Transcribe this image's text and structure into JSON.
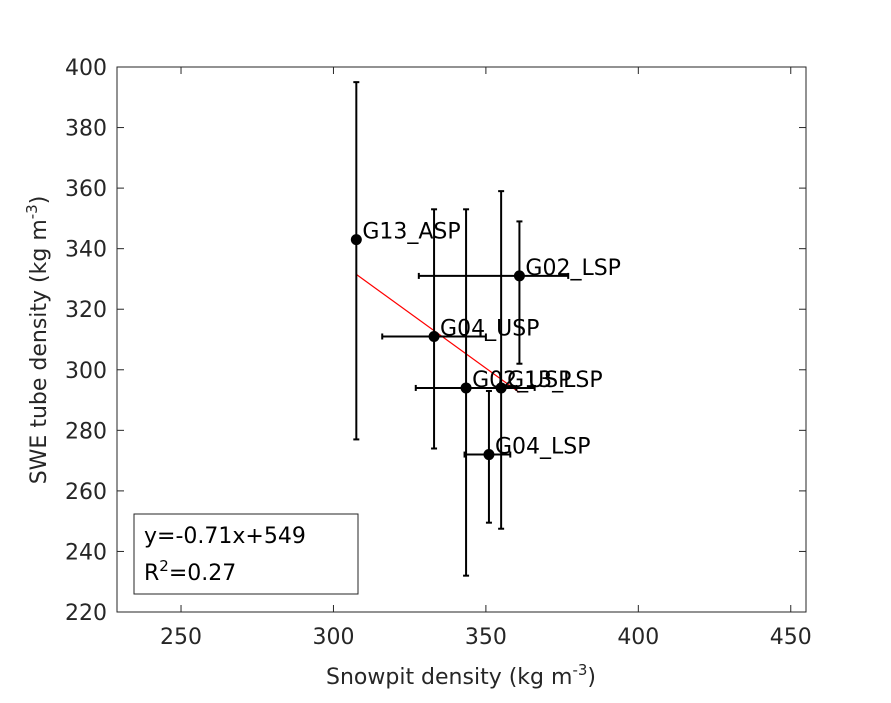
{
  "chart_data": {
    "type": "scatter",
    "xlabel": "Snowpit density (kg m",
    "xlabel_sup": "-3",
    "xlabel_end": ")",
    "ylabel": "SWE tube density (kg m",
    "ylabel_sup": "-3",
    "ylabel_end": ")",
    "xlim": [
      229,
      455
    ],
    "ylim": [
      220,
      400
    ],
    "xticks": [
      250,
      300,
      350,
      400,
      450
    ],
    "yticks": [
      220,
      240,
      260,
      280,
      300,
      320,
      340,
      360,
      380,
      400
    ],
    "grid": false,
    "colors": {
      "points": "#000000",
      "fit": "#ff0000",
      "axes": "#262626"
    },
    "points": [
      {
        "label": "G13_ASP",
        "x": 307.5,
        "y": 343,
        "xerr": [
          307.5,
          307.5
        ],
        "yerr": [
          277,
          395
        ]
      },
      {
        "label": "G02_LSP",
        "x": 361,
        "y": 331,
        "xerr": [
          328,
          377
        ],
        "yerr": [
          302,
          349
        ]
      },
      {
        "label": "G04_USP",
        "x": 333,
        "y": 311,
        "xerr": [
          316,
          350
        ],
        "yerr": [
          274,
          353
        ]
      },
      {
        "label": "G02_USP",
        "x": 343.5,
        "y": 294,
        "xerr": [
          327,
          360
        ],
        "yerr": [
          232,
          353
        ]
      },
      {
        "label": "G13_LSP",
        "x": 355,
        "y": 294,
        "xerr": [
          344,
          366
        ],
        "yerr": [
          247.5,
          359
        ]
      },
      {
        "label": "G04_LSP",
        "x": 351,
        "y": 272,
        "xerr": [
          343,
          358
        ],
        "yerr": [
          249.5,
          293
        ]
      }
    ],
    "fit": {
      "x": [
        307.5,
        361
      ],
      "y": [
        331.5,
        292.5
      ]
    },
    "legend": {
      "equation": "y=-0.71x+549",
      "r2_prefix": "R",
      "r2_sup": "2",
      "r2_value": "=0.27",
      "position": "bottom-left"
    }
  }
}
